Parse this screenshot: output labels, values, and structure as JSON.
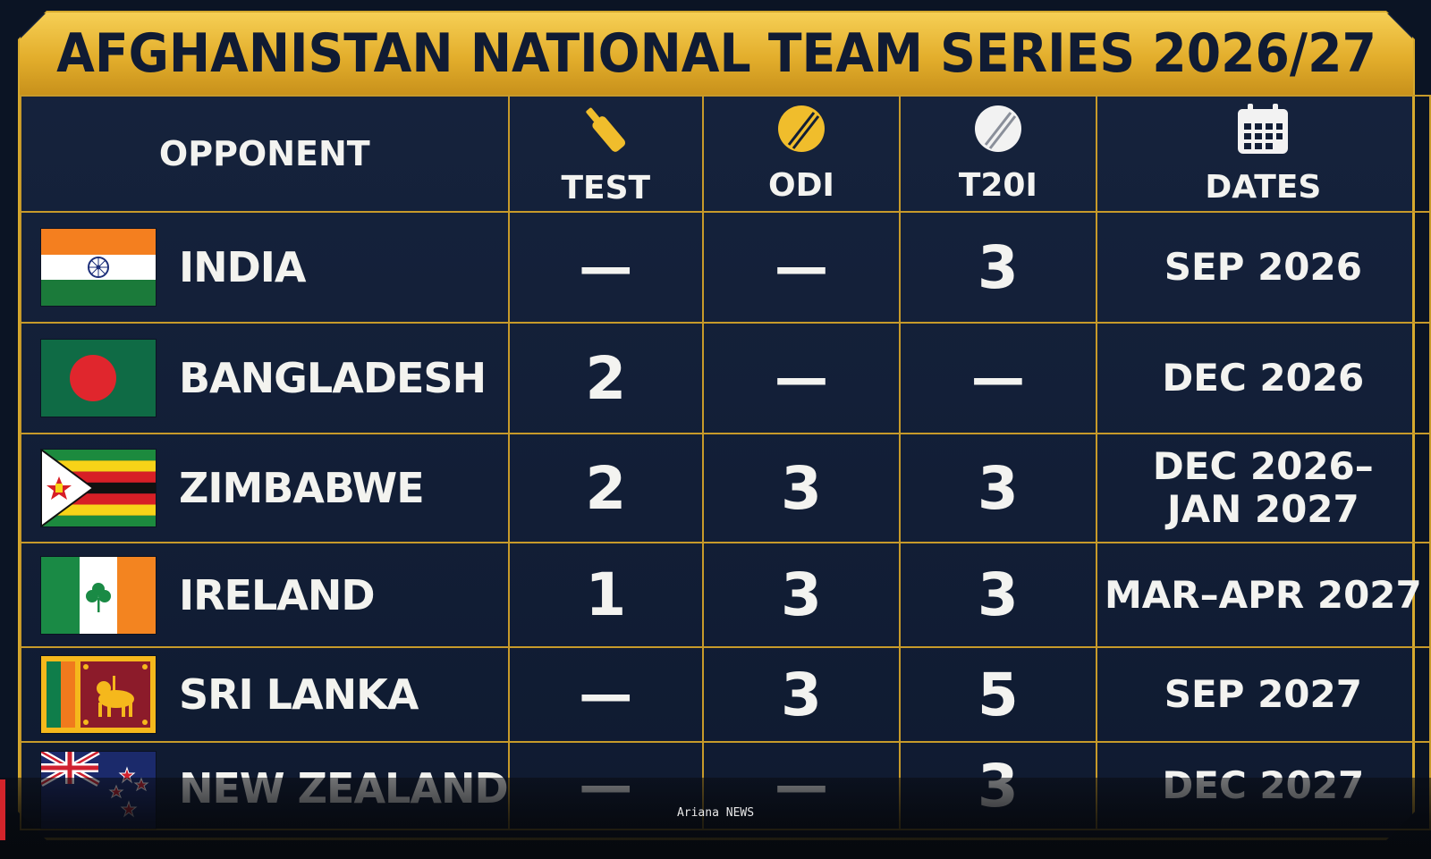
{
  "title": "AFGHANISTAN NATIONAL TEAM SERIES 2026/27",
  "headers": {
    "opponent": "OPPONENT",
    "test": "TEST",
    "odi": "ODI",
    "t20i": "T20I",
    "dates": "DATES"
  },
  "header_icons": {
    "test": "cricket-bat-icon",
    "odi": "cricket-ball-icon",
    "t20i": "white-cricket-ball-icon",
    "dates": "calendar-icon"
  },
  "rows": [
    {
      "opponent": "INDIA",
      "flag": "india-flag-icon",
      "test": "—",
      "odi": "—",
      "t20i": "3",
      "dates": "SEP 2026"
    },
    {
      "opponent": "BANGLADESH",
      "flag": "bangladesh-flag-icon",
      "test": "2",
      "odi": "—",
      "t20i": "—",
      "dates": "DEC 2026"
    },
    {
      "opponent": "ZIMBABWE",
      "flag": "zimbabwe-flag-icon",
      "test": "2",
      "odi": "3",
      "t20i": "3",
      "dates": "DEC 2026–\nJAN 2027"
    },
    {
      "opponent": "IRELAND",
      "flag": "ireland-flag-icon",
      "test": "1",
      "odi": "3",
      "t20i": "3",
      "dates": "MAR–APR 2027"
    },
    {
      "opponent": "SRI LANKA",
      "flag": "sri-lanka-flag-icon",
      "test": "—",
      "odi": "3",
      "t20i": "5",
      "dates": "SEP 2027"
    },
    {
      "opponent": "NEW ZEALAND",
      "flag": "new-zealand-flag-icon",
      "test": "—",
      "odi": "—",
      "t20i": "3",
      "dates": "DEC 2027"
    }
  ],
  "watermark": "Ariana NEWS",
  "colors": {
    "gold": "#f0bd2c",
    "navy": "#121e36",
    "grid": "#c79a2a"
  }
}
